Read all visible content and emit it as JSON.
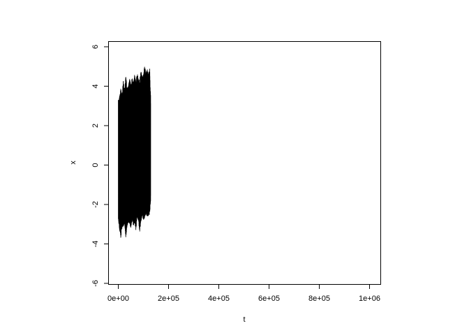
{
  "chart_data": {
    "type": "line",
    "title": "",
    "xlabel": "t",
    "ylabel": "x",
    "xlim": [
      0,
      1000000
    ],
    "ylim": [
      -6,
      6
    ],
    "grid": false,
    "x_ticks": [
      0,
      200000,
      400000,
      600000,
      800000,
      1000000
    ],
    "x_tick_labels": [
      "0e+00",
      "2e+05",
      "4e+05",
      "6e+05",
      "8e+05",
      "1e+06"
    ],
    "y_ticks": [
      -6,
      -4,
      -2,
      0,
      2,
      4,
      6
    ],
    "y_tick_labels": [
      "-6",
      "-4",
      "-2",
      "0",
      "2",
      "4",
      "6"
    ],
    "series": [
      {
        "color": "#000000",
        "t_range": [
          0,
          129000
        ],
        "envelope_t": [
          0,
          5000,
          10000,
          15000,
          20000,
          25000,
          30000,
          35000,
          40000,
          45000,
          50000,
          55000,
          60000,
          65000,
          70000,
          75000,
          80000,
          85000,
          90000,
          95000,
          100000,
          105000,
          110000,
          115000,
          120000,
          125000,
          129000
        ],
        "envelope_upper": [
          3.3,
          3.5,
          3.9,
          3.6,
          4.3,
          3.8,
          4.6,
          3.9,
          4.0,
          4.4,
          4.1,
          4.5,
          4.2,
          4.6,
          4.3,
          4.7,
          4.4,
          4.3,
          4.8,
          4.5,
          4.6,
          5.1,
          4.7,
          4.9,
          4.6,
          4.9,
          3.5
        ],
        "envelope_lower": [
          -2.8,
          -3.3,
          -3.7,
          -3.2,
          -3.1,
          -3.0,
          -3.7,
          -3.1,
          -2.9,
          -3.0,
          -3.2,
          -2.8,
          -3.1,
          -2.9,
          -3.3,
          -2.7,
          -2.8,
          -3.4,
          -2.9,
          -2.6,
          -2.8,
          -2.7,
          -2.5,
          -2.6,
          -2.6,
          -2.5,
          -1.8
        ]
      }
    ]
  }
}
